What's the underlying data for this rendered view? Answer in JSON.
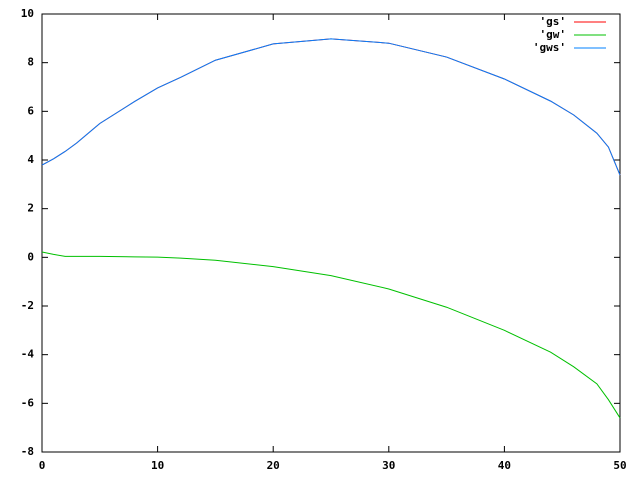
{
  "chart_data": {
    "type": "line",
    "x": [
      0,
      1,
      2,
      3,
      5,
      8,
      10,
      12,
      15,
      20,
      25,
      30,
      35,
      40,
      44,
      46,
      48,
      49,
      50
    ],
    "series": [
      {
        "name": "'gs'",
        "color": "#ff0000",
        "values": [
          3.79,
          4.05,
          4.35,
          4.7,
          5.5,
          6.4,
          6.96,
          7.4,
          8.1,
          8.77,
          8.98,
          8.8,
          8.23,
          7.33,
          6.42,
          5.85,
          5.1,
          4.53,
          3.38
        ]
      },
      {
        "name": "'gw'",
        "color": "#00c000",
        "values": [
          0.22,
          0.12,
          0.04,
          0.04,
          0.04,
          0.02,
          0.01,
          -0.03,
          -0.12,
          -0.38,
          -0.75,
          -1.3,
          -2.05,
          -3.0,
          -3.9,
          -4.5,
          -5.2,
          -5.85,
          -6.6
        ]
      },
      {
        "name": "'gws'",
        "color": "#0080ff",
        "values": [
          3.79,
          4.05,
          4.35,
          4.7,
          5.5,
          6.4,
          6.96,
          7.4,
          8.1,
          8.77,
          8.98,
          8.8,
          8.23,
          7.33,
          6.42,
          5.85,
          5.1,
          4.53,
          3.38
        ]
      }
    ],
    "xlim": [
      0,
      50
    ],
    "xticks": [
      0,
      10,
      20,
      30,
      40,
      50
    ],
    "ylim": [
      -8,
      10
    ],
    "yticks": [
      -8,
      -6,
      -4,
      -2,
      0,
      2,
      4,
      6,
      8,
      10
    ],
    "legend": "top-right"
  }
}
